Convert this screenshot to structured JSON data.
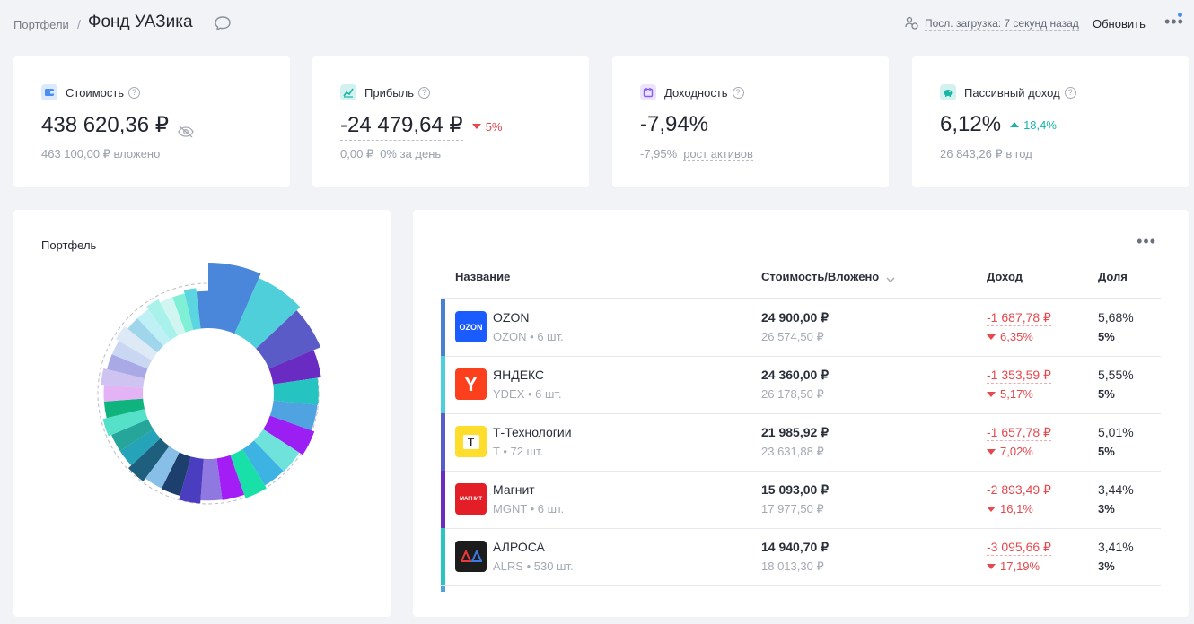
{
  "breadcrumb": {
    "parent": "Портфели",
    "separator": "/",
    "title": "Фонд УАЗика"
  },
  "header": {
    "last_load": "Посл. загрузка: 7 секунд назад",
    "refresh": "Обновить",
    "more": "•••"
  },
  "kpis": {
    "cost": {
      "label": "Стоимость",
      "value": "438 620,36 ₽",
      "sub": "463 100,00 ₽ вложено",
      "icon": "wallet-icon",
      "icon_color": "#4b8ef1"
    },
    "profit": {
      "label": "Прибыль",
      "value": "-24 479,64 ₽",
      "change": "5%",
      "sub_value": "0,00 ₽",
      "sub_text": "0% за день",
      "icon": "chart-icon",
      "icon_color": "#19b5a7"
    },
    "yield": {
      "label": "Доходность",
      "value": "-7,94%",
      "sub_value": "-7,95%",
      "sub_text": "рост активов",
      "icon": "calendar-icon",
      "icon_color": "#8a5cf6"
    },
    "passive": {
      "label": "Пассивный доход",
      "value": "6,12%",
      "change": "18,4%",
      "sub": "26 843,26 ₽ в год",
      "icon": "piggy-bank-icon",
      "icon_color": "#19b5a7"
    }
  },
  "portfolio": {
    "title": "Портфель"
  },
  "table": {
    "more": "•••",
    "columns": {
      "name": "Название",
      "cost": "Стоимость/Вложено",
      "income": "Доход",
      "share": "Доля"
    },
    "rows": [
      {
        "name": "OZON",
        "ticker": "OZON • 6 шт.",
        "cost": "24 900,00 ₽",
        "invested": "26 574,50 ₽",
        "income": "-1 687,78 ₽",
        "income_pct": "6,35%",
        "share": "5,68%",
        "target": "5%",
        "color": "#4a7fd4",
        "logo_bg": "#1a5cff",
        "logo_text": "OZON",
        "logo_fg": "#ffffff",
        "logo_icon": "ozon-logo-icon"
      },
      {
        "name": "ЯНДЕКС",
        "ticker": "YDEX • 6 шт.",
        "cost": "24 360,00 ₽",
        "invested": "26 178,50 ₽",
        "income": "-1 353,59 ₽",
        "income_pct": "5,17%",
        "share": "5,55%",
        "target": "5%",
        "color": "#4fcfd9",
        "logo_bg": "#fc3f1d",
        "logo_text": "Y",
        "logo_fg": "#ffffff",
        "logo_icon": "yandex-logo-icon"
      },
      {
        "name": "Т-Технологии",
        "ticker": "T • 72 шт.",
        "cost": "21 985,92 ₽",
        "invested": "23 631,88 ₽",
        "income": "-1 657,78 ₽",
        "income_pct": "7,02%",
        "share": "5,01%",
        "target": "5%",
        "color": "#5a5cc9",
        "logo_bg": "#ffdd2d",
        "logo_text": "T",
        "logo_fg": "#222222",
        "logo_icon": "t-bank-logo-icon"
      },
      {
        "name": "Магнит",
        "ticker": "MGNT • 6 шт.",
        "cost": "15 093,00 ₽",
        "invested": "17 977,50 ₽",
        "income": "-2 893,49 ₽",
        "income_pct": "16,1%",
        "share": "3,44%",
        "target": "3%",
        "color": "#6a2bc2",
        "logo_bg": "#e41e26",
        "logo_text": "МАГНИТ",
        "logo_fg": "#ffffff",
        "logo_icon": "magnit-logo-icon"
      },
      {
        "name": "АЛРОСА",
        "ticker": "ALRS • 530 шт.",
        "cost": "14 940,70 ₽",
        "invested": "18 013,30 ₽",
        "income": "-3 095,66 ₽",
        "income_pct": "17,19%",
        "share": "3,41%",
        "target": "3%",
        "color": "#2bc4bf",
        "logo_bg": "#1c1c1c",
        "logo_text": "",
        "logo_fg": "#ffffff",
        "logo_icon": "alrosa-logo-icon"
      }
    ]
  },
  "chart_data": {
    "type": "pie",
    "variant": "donut",
    "values": [
      5.68,
      5.55,
      5.01,
      3.44,
      3.41,
      3.3,
      3.2,
      3.1,
      3.0,
      2.9,
      2.9,
      2.8,
      2.7,
      2.6,
      2.5,
      2.5,
      2.4,
      2.4,
      2.3,
      2.2,
      2.2,
      2.1,
      2.1,
      2.0,
      2.0,
      1.9,
      1.9,
      1.8,
      1.8,
      1.7,
      1.6,
      1.6
    ],
    "colors": [
      "#4a86d9",
      "#4fcfd9",
      "#5b5bc8",
      "#6a2bc2",
      "#26c4c0",
      "#4fa3e0",
      "#9b1ef2",
      "#6fe3db",
      "#3db3e3",
      "#19e0a8",
      "#a21ef5",
      "#8f78e0",
      "#4a3dbf",
      "#1d3f6e",
      "#87bfe8",
      "#1e5f7d",
      "#25a3b8",
      "#26a69a",
      "#55e0c9",
      "#0fb37d",
      "#e3b3f5",
      "#cfc3f2",
      "#a9a9e6",
      "#c9d7f2",
      "#ddeaf5",
      "#9fd6ec",
      "#bff0f5",
      "#a9f2ec",
      "#d1f5f1",
      "#7ff0d6",
      "#5bd6e0",
      "#4a86d9"
    ]
  }
}
